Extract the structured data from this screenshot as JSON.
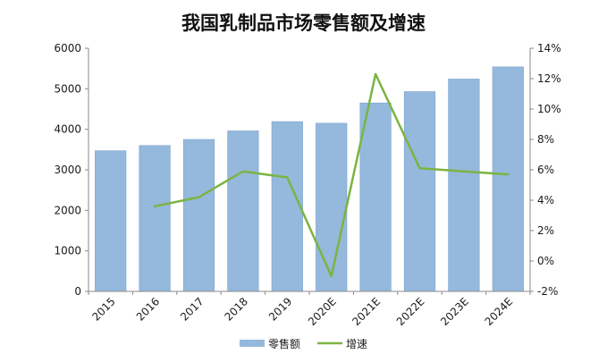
{
  "chart_data": {
    "type": "bar",
    "title": "我国乳制品市场零售额及增速",
    "categories": [
      "2015",
      "2016",
      "2017",
      "2018",
      "2019",
      "2020E",
      "2021E",
      "2022E",
      "2023E",
      "2024E"
    ],
    "series": [
      {
        "name": "零售额",
        "type": "bar",
        "axis": "left",
        "color": "#95B9DC",
        "values": [
          3470,
          3600,
          3750,
          3960,
          4190,
          4150,
          4650,
          4930,
          5240,
          5540
        ]
      },
      {
        "name": "增速",
        "type": "line",
        "axis": "right",
        "color": "#7CB342",
        "values": [
          null,
          3.6,
          4.2,
          5.9,
          5.5,
          -1.0,
          12.3,
          6.1,
          5.9,
          5.7
        ]
      }
    ],
    "y_left": {
      "min": 0,
      "max": 6000,
      "ticks": [
        "0",
        "1000",
        "2000",
        "3000",
        "4000",
        "5000",
        "6000"
      ]
    },
    "y_right": {
      "min": -2,
      "max": 14,
      "ticks": [
        "-2%",
        "0%",
        "2%",
        "4%",
        "6%",
        "8%",
        "10%",
        "12%",
        "14%"
      ]
    },
    "grid": false,
    "legend_position": "bottom"
  }
}
